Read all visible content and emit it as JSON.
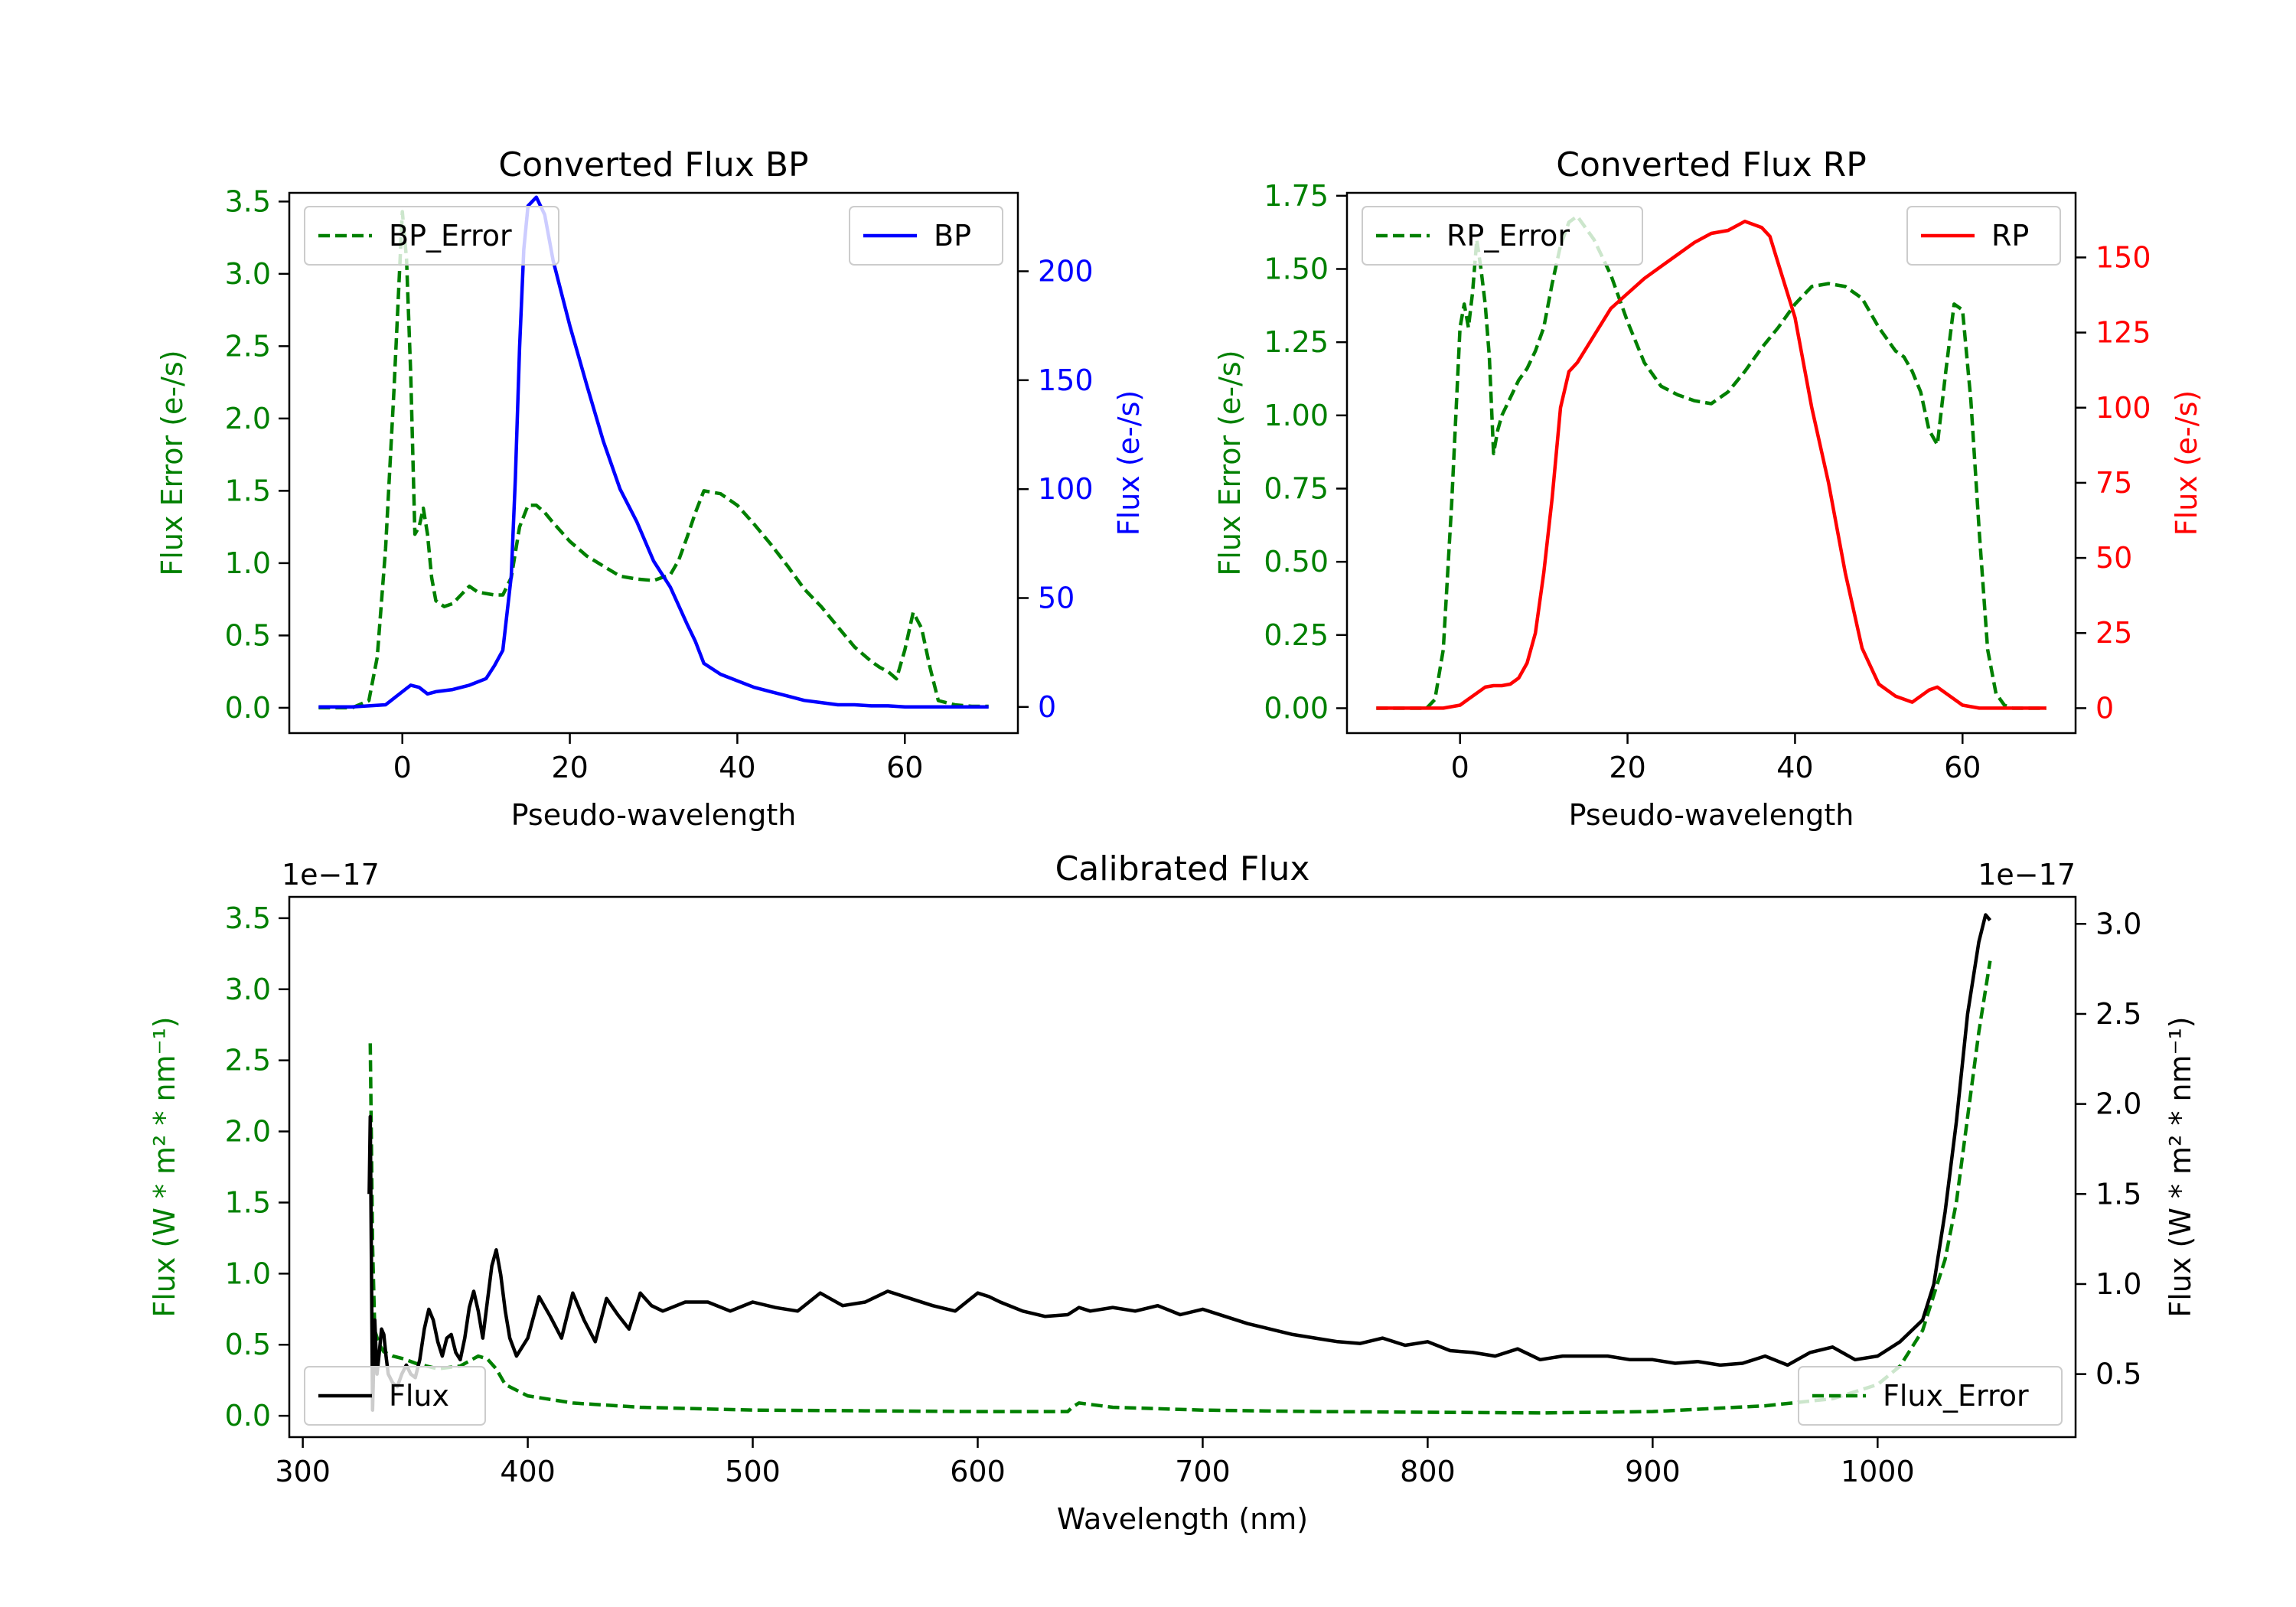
{
  "colors": {
    "green": "#008000",
    "blue": "#0000ff",
    "red": "#ff0000",
    "black": "#000000"
  },
  "chart_data": [
    {
      "type": "line",
      "title": "Converted Flux BP",
      "xlabel": "Pseudo-wavelength",
      "ylabel_left": "Flux Error (e-/s)",
      "ylabel_right": "Flux (e-/s)",
      "xlim": [
        -13.5,
        73.5
      ],
      "ylim_left": [
        -0.175,
        3.56
      ],
      "ylim_right": [
        -12,
        236
      ],
      "x_ticks": [
        "0",
        "20",
        "40",
        "60"
      ],
      "x_tick_values": [
        0,
        20,
        40,
        60
      ],
      "y_left_ticks": [
        "0.0",
        "0.5",
        "1.0",
        "1.5",
        "2.0",
        "2.5",
        "3.0",
        "3.5"
      ],
      "y_left_tick_values": [
        0,
        0.5,
        1.0,
        1.5,
        2.0,
        2.5,
        3.0,
        3.5
      ],
      "y_right_ticks": [
        "0",
        "50",
        "100",
        "150",
        "200"
      ],
      "y_right_tick_values": [
        0,
        50,
        100,
        150,
        200
      ],
      "legend_left": "BP_Error",
      "legend_right": "BP",
      "series": [
        {
          "name": "BP_Error",
          "axis": "left",
          "style": "dashed",
          "color": "#008000",
          "x": [
            -10,
            -6,
            -4,
            -3,
            -2,
            -1,
            0,
            0.5,
            1,
            1.5,
            2,
            2.5,
            3,
            3.5,
            4,
            5,
            6,
            7,
            8,
            9,
            10,
            11,
            12,
            13,
            14,
            15,
            16,
            17,
            18,
            20,
            22,
            24,
            26,
            28,
            30,
            31,
            32,
            33,
            34,
            35,
            36,
            38,
            40,
            42,
            44,
            46,
            48,
            50,
            52,
            54,
            56,
            57,
            58,
            59,
            60,
            61,
            62,
            63,
            64,
            66,
            68,
            70
          ],
          "y": [
            0,
            0,
            0.05,
            0.35,
            1.1,
            2.2,
            3.43,
            3.1,
            2.3,
            1.2,
            1.25,
            1.38,
            1.2,
            0.9,
            0.74,
            0.7,
            0.72,
            0.78,
            0.84,
            0.8,
            0.79,
            0.78,
            0.78,
            0.9,
            1.25,
            1.4,
            1.4,
            1.35,
            1.28,
            1.15,
            1.05,
            0.98,
            0.91,
            0.89,
            0.88,
            0.9,
            0.92,
            1.02,
            1.18,
            1.35,
            1.5,
            1.48,
            1.4,
            1.27,
            1.13,
            0.98,
            0.82,
            0.7,
            0.56,
            0.42,
            0.32,
            0.28,
            0.25,
            0.2,
            0.4,
            0.66,
            0.55,
            0.28,
            0.05,
            0.02,
            0.01,
            0.01
          ]
        },
        {
          "name": "BP",
          "axis": "right",
          "style": "solid",
          "color": "#0000ff",
          "x": [
            -10,
            -6,
            -2,
            0,
            1,
            2,
            3,
            4,
            6,
            8,
            10,
            11,
            12,
            13,
            13.5,
            14,
            14.5,
            15,
            16,
            17,
            18,
            19,
            20,
            22,
            24,
            26,
            28,
            30,
            32,
            34,
            35,
            36,
            38,
            40,
            42,
            44,
            46,
            48,
            50,
            52,
            54,
            56,
            58,
            60,
            62,
            66,
            70
          ],
          "y": [
            0,
            0,
            1,
            7,
            10,
            9,
            6,
            7,
            8,
            10,
            13,
            19,
            26,
            60,
            105,
            165,
            210,
            230,
            234,
            226,
            205,
            190,
            175,
            148,
            122,
            100,
            85,
            67,
            55,
            38,
            30,
            20,
            15,
            12,
            9,
            7,
            5,
            3,
            2,
            1,
            1,
            0.5,
            0.5,
            0,
            0,
            0,
            0
          ]
        }
      ]
    },
    {
      "type": "line",
      "title": "Converted Flux RP",
      "xlabel": "Pseudo-wavelength",
      "ylabel_left": "Flux Error (e-/s)",
      "ylabel_right": "Flux (e-/s)",
      "xlim": [
        -13.5,
        73.5
      ],
      "ylim_left": [
        -0.085,
        1.76
      ],
      "ylim_right": [
        -8.3,
        171.5
      ],
      "x_ticks": [
        "0",
        "20",
        "40",
        "60"
      ],
      "x_tick_values": [
        0,
        20,
        40,
        60
      ],
      "y_left_ticks": [
        "0.00",
        "0.25",
        "0.50",
        "0.75",
        "1.00",
        "1.25",
        "1.50",
        "1.75"
      ],
      "y_left_tick_values": [
        0,
        0.25,
        0.5,
        0.75,
        1.0,
        1.25,
        1.5,
        1.75
      ],
      "y_right_ticks": [
        "0",
        "25",
        "50",
        "75",
        "100",
        "125",
        "150"
      ],
      "y_right_tick_values": [
        0,
        25,
        50,
        75,
        100,
        125,
        150
      ],
      "legend_left": "RP_Error",
      "legend_right": "RP",
      "series": [
        {
          "name": "RP_Error",
          "axis": "left",
          "style": "dashed",
          "color": "#008000",
          "x": [
            -10,
            -4,
            -3,
            -2,
            -1,
            0,
            0.5,
            1,
            1.5,
            2,
            2.5,
            3,
            3.5,
            4,
            4.5,
            5,
            6,
            7,
            8,
            9,
            10,
            11,
            12,
            13,
            14,
            16,
            18,
            20,
            22,
            24,
            26,
            28,
            30,
            32,
            34,
            36,
            38,
            40,
            42,
            44,
            46,
            48,
            50,
            52,
            53,
            54,
            55,
            56,
            57,
            58,
            59,
            60,
            61,
            62,
            63,
            64,
            65,
            66,
            70
          ],
          "y": [
            0,
            0,
            0.03,
            0.2,
            0.7,
            1.3,
            1.38,
            1.3,
            1.42,
            1.6,
            1.5,
            1.38,
            1.2,
            0.87,
            0.95,
            1.0,
            1.06,
            1.12,
            1.16,
            1.22,
            1.3,
            1.45,
            1.58,
            1.66,
            1.68,
            1.6,
            1.48,
            1.32,
            1.18,
            1.1,
            1.07,
            1.05,
            1.04,
            1.08,
            1.15,
            1.23,
            1.3,
            1.38,
            1.44,
            1.45,
            1.44,
            1.4,
            1.3,
            1.22,
            1.2,
            1.15,
            1.08,
            0.95,
            0.9,
            1.15,
            1.38,
            1.36,
            1.05,
            0.6,
            0.2,
            0.05,
            0.01,
            0.0,
            0.0
          ]
        },
        {
          "name": "RP",
          "axis": "right",
          "style": "solid",
          "color": "#ff0000",
          "x": [
            -10,
            -2,
            0,
            1,
            2,
            3,
            4,
            5,
            6,
            7,
            8,
            9,
            10,
            11,
            12,
            13,
            14,
            16,
            18,
            20,
            22,
            24,
            26,
            28,
            30,
            32,
            34,
            36,
            37,
            38,
            40,
            42,
            44,
            46,
            48,
            50,
            52,
            54,
            56,
            57,
            58,
            60,
            62,
            66,
            70
          ],
          "y": [
            0,
            0,
            1,
            3,
            5,
            7,
            7.5,
            7.5,
            8,
            10,
            15,
            25,
            45,
            70,
            100,
            112,
            115,
            124,
            133,
            138,
            143,
            147,
            151,
            155,
            158,
            159,
            162,
            160,
            157,
            148,
            130,
            100,
            75,
            45,
            20,
            8,
            4,
            2,
            6,
            7,
            5,
            1,
            0,
            0,
            0
          ]
        }
      ]
    },
    {
      "type": "line",
      "title": "Calibrated Flux",
      "xlabel": "Wavelength (nm)",
      "ylabel_left": "Flux (W * m² * nm⁻¹)",
      "ylabel_right": "Flux (W * m² * nm⁻¹)",
      "offset_left": "1e−17",
      "offset_right": "1e−17",
      "xlim": [
        294,
        1088
      ],
      "ylim_left": [
        -0.15,
        3.65
      ],
      "ylim_right": [
        0.15,
        3.15
      ],
      "x_ticks": [
        "300",
        "400",
        "500",
        "600",
        "700",
        "800",
        "900",
        "1000"
      ],
      "x_tick_values": [
        300,
        400,
        500,
        600,
        700,
        800,
        900,
        1000
      ],
      "y_left_ticks": [
        "0.0",
        "0.5",
        "1.0",
        "1.5",
        "2.0",
        "2.5",
        "3.0",
        "3.5"
      ],
      "y_left_tick_values": [
        0,
        0.5,
        1.0,
        1.5,
        2.0,
        2.5,
        3.0,
        3.5
      ],
      "y_right_ticks": [
        "0.5",
        "1.0",
        "1.5",
        "2.0",
        "2.5",
        "3.0"
      ],
      "y_right_tick_values": [
        0.5,
        1.0,
        1.5,
        2.0,
        2.5,
        3.0
      ],
      "legend_left": "Flux",
      "legend_right": "Flux_Error",
      "series": [
        {
          "name": "Flux_Error",
          "axis": "left",
          "style": "dashed",
          "color": "#008000",
          "x": [
            330,
            331,
            332,
            334,
            336,
            340,
            345,
            350,
            360,
            370,
            378,
            382,
            386,
            390,
            400,
            420,
            450,
            500,
            550,
            600,
            640,
            642,
            645,
            660,
            700,
            750,
            800,
            850,
            900,
            950,
            980,
            1000,
            1010,
            1020,
            1025,
            1030,
            1035,
            1040,
            1045,
            1050
          ],
          "y": [
            2.62,
            1.2,
            0.6,
            0.5,
            0.45,
            0.42,
            0.4,
            0.37,
            0.33,
            0.35,
            0.42,
            0.4,
            0.33,
            0.22,
            0.14,
            0.09,
            0.06,
            0.04,
            0.035,
            0.03,
            0.03,
            0.06,
            0.09,
            0.06,
            0.04,
            0.03,
            0.025,
            0.02,
            0.03,
            0.07,
            0.12,
            0.22,
            0.35,
            0.6,
            0.85,
            1.1,
            1.5,
            2.1,
            2.7,
            3.2
          ]
        },
        {
          "name": "Flux",
          "axis": "right",
          "style": "solid",
          "color": "#000000",
          "x": [
            329.5,
            330,
            331,
            332,
            333,
            334,
            335,
            336,
            337,
            338,
            340,
            342,
            344,
            346,
            348,
            350,
            352,
            354,
            356,
            358,
            360,
            362,
            364,
            366,
            368,
            370,
            372,
            374,
            376,
            378,
            380,
            382,
            384,
            386,
            388,
            390,
            392,
            395,
            400,
            405,
            410,
            415,
            420,
            425,
            430,
            435,
            440,
            445,
            450,
            455,
            460,
            470,
            480,
            490,
            500,
            510,
            520,
            530,
            540,
            550,
            560,
            570,
            580,
            590,
            600,
            605,
            610,
            620,
            630,
            640,
            645,
            650,
            660,
            670,
            680,
            690,
            700,
            710,
            720,
            730,
            740,
            750,
            760,
            770,
            780,
            790,
            800,
            810,
            820,
            830,
            840,
            850,
            860,
            870,
            880,
            890,
            900,
            910,
            920,
            930,
            940,
            950,
            960,
            970,
            980,
            990,
            1000,
            1010,
            1020,
            1025,
            1030,
            1035,
            1040,
            1045,
            1048,
            1050
          ],
          "y": [
            1.5,
            1.93,
            0.3,
            0.8,
            0.5,
            0.62,
            0.75,
            0.72,
            0.6,
            0.5,
            0.45,
            0.43,
            0.5,
            0.55,
            0.5,
            0.48,
            0.58,
            0.75,
            0.86,
            0.8,
            0.68,
            0.6,
            0.7,
            0.72,
            0.62,
            0.58,
            0.7,
            0.87,
            0.96,
            0.85,
            0.7,
            0.9,
            1.1,
            1.19,
            1.05,
            0.85,
            0.7,
            0.6,
            0.7,
            0.93,
            0.82,
            0.7,
            0.95,
            0.8,
            0.68,
            0.92,
            0.83,
            0.75,
            0.95,
            0.88,
            0.85,
            0.9,
            0.9,
            0.85,
            0.9,
            0.87,
            0.85,
            0.95,
            0.88,
            0.9,
            0.96,
            0.92,
            0.88,
            0.85,
            0.95,
            0.93,
            0.9,
            0.85,
            0.82,
            0.83,
            0.87,
            0.85,
            0.87,
            0.85,
            0.88,
            0.83,
            0.86,
            0.82,
            0.78,
            0.75,
            0.72,
            0.7,
            0.68,
            0.67,
            0.7,
            0.66,
            0.68,
            0.63,
            0.62,
            0.6,
            0.64,
            0.58,
            0.6,
            0.6,
            0.6,
            0.58,
            0.58,
            0.56,
            0.57,
            0.55,
            0.56,
            0.6,
            0.55,
            0.62,
            0.65,
            0.58,
            0.6,
            0.68,
            0.8,
            1.0,
            1.4,
            1.9,
            2.5,
            2.9,
            3.05,
            3.02
          ]
        }
      ]
    }
  ]
}
